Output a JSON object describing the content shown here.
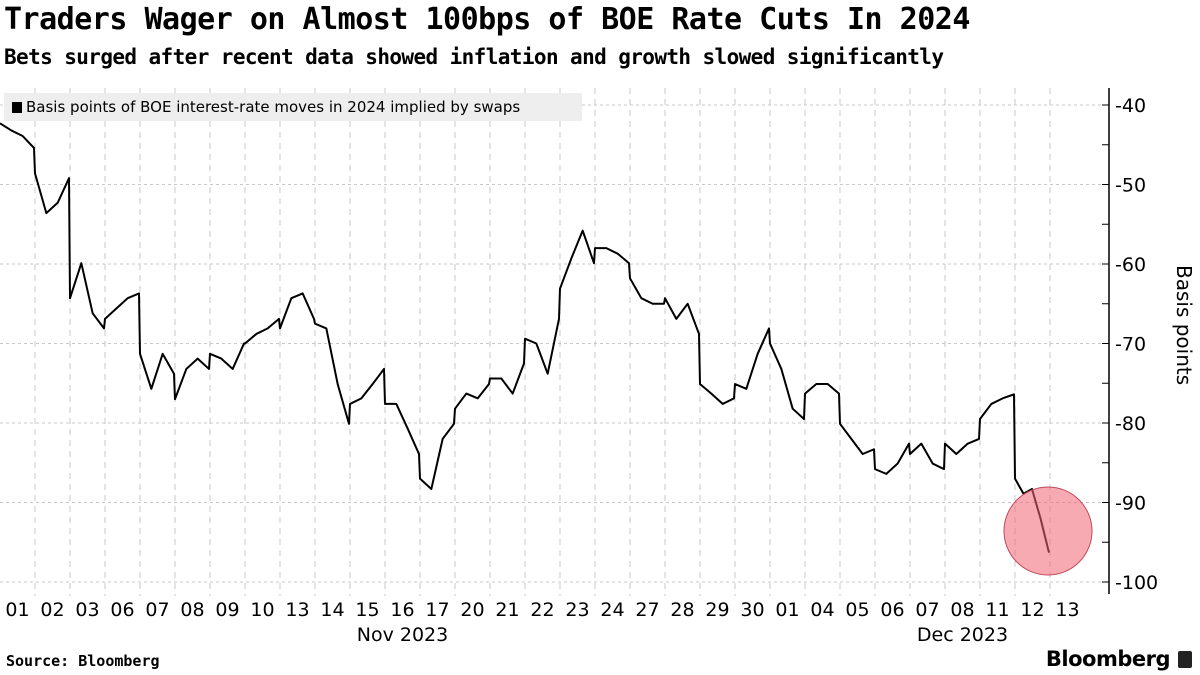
{
  "title": "Traders Wager on Almost 100bps of BOE Rate Cuts In 2024",
  "subtitle": "Bets surged after recent data showed inflation and growth slowed significantly",
  "source": "Source: Bloomberg",
  "brand": "Bloomberg",
  "chart_data": {
    "type": "line",
    "title": "Traders Wager on Almost 100bps of BOE Rate Cuts In 2024",
    "ylabel": "Basis points",
    "ylim": [
      -100,
      -40
    ],
    "yticks": [
      -40,
      -50,
      -60,
      -70,
      -80,
      -90,
      -100
    ],
    "y_axis_side": "right",
    "grid": true,
    "legend": "top-left",
    "x_tick_labels": [
      "01",
      "02",
      "03",
      "06",
      "07",
      "08",
      "09",
      "10",
      "13",
      "14",
      "15",
      "16",
      "17",
      "20",
      "21",
      "22",
      "23",
      "24",
      "27",
      "28",
      "29",
      "30",
      "01",
      "04",
      "05",
      "06",
      "07",
      "08",
      "11",
      "12",
      "13"
    ],
    "x_month_labels": [
      {
        "label": "Nov 2023",
        "at": "16"
      },
      {
        "label": "Dec 2023",
        "at": "08"
      }
    ],
    "highlight": {
      "type": "circle",
      "around": "2023-12-12",
      "color": "#f07080"
    },
    "series": [
      {
        "name": "Basis points of BOE interest-rate moves in 2024 implied by swaps",
        "color": "#000000",
        "intraday": [
          {
            "date": "2023-11-01",
            "values": [
              -42.3,
              -43.2,
              -43.9,
              -45.4
            ]
          },
          {
            "date": "2023-11-02",
            "values": [
              -48.6,
              -53.6,
              -52.3,
              -49.2
            ]
          },
          {
            "date": "2023-11-03",
            "values": [
              -64.3,
              -59.9,
              -66.2,
              -68.1
            ]
          },
          {
            "date": "2023-11-06",
            "values": [
              -66.9,
              -65.6,
              -64.3,
              -63.7
            ]
          },
          {
            "date": "2023-11-07",
            "values": [
              -71.3,
              -75.7,
              -71.3,
              -73.8
            ]
          },
          {
            "date": "2023-11-08",
            "values": [
              -77.0,
              -73.2,
              -71.9,
              -73.2
            ]
          },
          {
            "date": "2023-11-09",
            "values": [
              -71.3,
              -71.9,
              -73.2,
              -70.0
            ]
          },
          {
            "date": "2023-11-10",
            "values": [
              -70.0,
              -68.8,
              -68.1,
              -66.9
            ]
          },
          {
            "date": "2023-11-13",
            "values": [
              -68.1,
              -64.3,
              -63.7,
              -66.9
            ]
          },
          {
            "date": "2023-11-14",
            "values": [
              -67.5,
              -68.1,
              -75.1,
              -80.1
            ]
          },
          {
            "date": "2023-11-15",
            "values": [
              -77.6,
              -76.9,
              -75.1,
              -73.2
            ]
          },
          {
            "date": "2023-11-16",
            "values": [
              -77.6,
              -77.6,
              -80.7,
              -83.9
            ]
          },
          {
            "date": "2023-11-17",
            "values": [
              -87.0,
              -88.3,
              -82.0,
              -80.1
            ]
          },
          {
            "date": "2023-11-20",
            "values": [
              -78.2,
              -76.3,
              -76.9,
              -75.1
            ]
          },
          {
            "date": "2023-11-21",
            "values": [
              -74.4,
              -74.4,
              -76.3,
              -72.5
            ]
          },
          {
            "date": "2023-11-22",
            "values": [
              -69.4,
              -70.0,
              -73.8,
              -66.9
            ]
          },
          {
            "date": "2023-11-23",
            "values": [
              -63.1,
              -59.3,
              -55.8,
              -59.9
            ]
          },
          {
            "date": "2023-11-24",
            "values": [
              -58.0,
              -58.0,
              -58.7,
              -59.9
            ]
          },
          {
            "date": "2023-11-27",
            "values": [
              -61.8,
              -64.3,
              -65.0,
              -65.0
            ]
          },
          {
            "date": "2023-11-28",
            "values": [
              -64.3,
              -66.9,
              -65.0,
              -68.8
            ]
          },
          {
            "date": "2023-11-29",
            "values": [
              -75.1,
              -76.3,
              -77.6,
              -76.9
            ]
          },
          {
            "date": "2023-11-30",
            "values": [
              -75.1,
              -75.7,
              -71.3,
              -68.1
            ]
          },
          {
            "date": "2023-12-01",
            "values": [
              -70.0,
              -73.2,
              -78.2,
              -79.5
            ]
          },
          {
            "date": "2023-12-04",
            "values": [
              -76.3,
              -75.1,
              -75.1,
              -76.3
            ]
          },
          {
            "date": "2023-12-05",
            "values": [
              -80.1,
              -82.0,
              -83.9,
              -83.3
            ]
          },
          {
            "date": "2023-12-06",
            "values": [
              -85.8,
              -86.4,
              -85.1,
              -82.6
            ]
          },
          {
            "date": "2023-12-07",
            "values": [
              -83.9,
              -82.6,
              -85.1,
              -85.8
            ]
          },
          {
            "date": "2023-12-08",
            "values": [
              -82.6,
              -83.9,
              -82.6,
              -82.0
            ]
          },
          {
            "date": "2023-12-11",
            "values": [
              -79.5,
              -77.6,
              -76.9,
              -76.4
            ]
          },
          {
            "date": "2023-12-12",
            "values": [
              -87.0,
              -88.9,
              -88.3,
              -92.0,
              -96.3
            ]
          }
        ]
      }
    ]
  }
}
